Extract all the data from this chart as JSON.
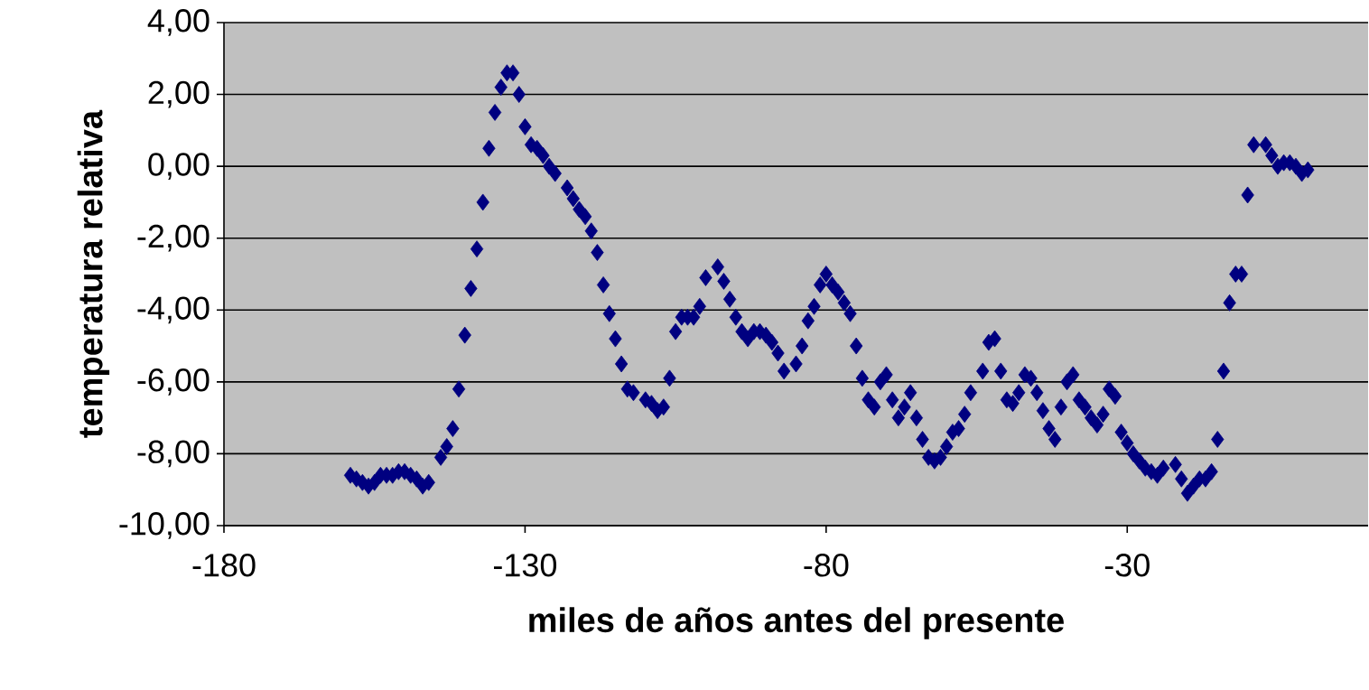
{
  "chart_data": {
    "type": "scatter",
    "xlabel": "miles de años antes del presente",
    "ylabel": "temperatura relativa",
    "x": [
      -159,
      -158,
      -157,
      -156,
      -155,
      -154,
      -153,
      -152,
      -151,
      -150,
      -149,
      -148,
      -147,
      -146,
      -144,
      -143,
      -142,
      -141,
      -140,
      -139,
      -138,
      -137,
      -136,
      -135,
      -134,
      -133,
      -132,
      -131,
      -130,
      -129,
      -128,
      -127,
      -126,
      -125,
      -123,
      -122,
      -121,
      -120,
      -119,
      -118,
      -117,
      -116,
      -115,
      -114,
      -113,
      -112,
      -110,
      -109,
      -108,
      -107,
      -106,
      -105,
      -104,
      -103,
      -102,
      -101,
      -100,
      -98,
      -97,
      -96,
      -95,
      -94,
      -93,
      -92,
      -91,
      -90,
      -89,
      -88,
      -87,
      -85,
      -84,
      -83,
      -82,
      -81,
      -80,
      -79,
      -78,
      -77,
      -76,
      -75,
      -74,
      -73,
      -72,
      -71,
      -70,
      -69,
      -68,
      -67,
      -66,
      -65,
      -64,
      -63,
      -62,
      -61,
      -60,
      -59,
      -58,
      -57,
      -56,
      -54,
      -53,
      -52,
      -51,
      -50,
      -49,
      -48,
      -47,
      -46,
      -45,
      -44,
      -43,
      -42,
      -41,
      -40,
      -39,
      -38,
      -37,
      -36,
      -35,
      -34,
      -33,
      -32,
      -31,
      -30,
      -29,
      -28,
      -27,
      -26,
      -25,
      -24,
      -22,
      -21,
      -20,
      -19,
      -18,
      -17,
      -16,
      -15,
      -14,
      -13,
      -12,
      -11,
      -10,
      -9,
      -7,
      -6,
      -5,
      -4,
      -3,
      -2,
      -1,
      0
    ],
    "values": [
      -8.6,
      -8.7,
      -8.8,
      -8.9,
      -8.8,
      -8.6,
      -8.6,
      -8.6,
      -8.5,
      -8.5,
      -8.6,
      -8.7,
      -8.9,
      -8.8,
      -8.1,
      -7.8,
      -7.3,
      -6.2,
      -4.7,
      -3.4,
      -2.3,
      -1.0,
      0.5,
      1.5,
      2.2,
      2.6,
      2.6,
      2.0,
      1.1,
      0.6,
      0.5,
      0.3,
      0.0,
      -0.2,
      -0.6,
      -0.9,
      -1.2,
      -1.4,
      -1.8,
      -2.4,
      -3.3,
      -4.1,
      -4.8,
      -5.5,
      -6.2,
      -6.3,
      -6.5,
      -6.6,
      -6.8,
      -6.7,
      -5.9,
      -4.6,
      -4.2,
      -4.2,
      -4.2,
      -3.9,
      -3.1,
      -2.8,
      -3.2,
      -3.7,
      -4.2,
      -4.6,
      -4.8,
      -4.6,
      -4.6,
      -4.7,
      -4.9,
      -5.2,
      -5.7,
      -5.5,
      -5.0,
      -4.3,
      -3.9,
      -3.3,
      -3.0,
      -3.3,
      -3.5,
      -3.8,
      -4.1,
      -5.0,
      -5.9,
      -6.5,
      -6.7,
      -6.0,
      -5.8,
      -6.5,
      -7.0,
      -6.7,
      -6.3,
      -7.0,
      -7.6,
      -8.1,
      -8.2,
      -8.1,
      -7.8,
      -7.4,
      -7.3,
      -6.9,
      -6.3,
      -5.7,
      -4.9,
      -4.8,
      -5.7,
      -6.5,
      -6.6,
      -6.3,
      -5.8,
      -5.9,
      -6.3,
      -6.8,
      -7.3,
      -7.6,
      -6.7,
      -6.0,
      -5.8,
      -6.5,
      -6.7,
      -7.0,
      -7.2,
      -6.9,
      -6.2,
      -6.4,
      -7.4,
      -7.7,
      -8.0,
      -8.2,
      -8.4,
      -8.5,
      -8.6,
      -8.4,
      -8.3,
      -8.7,
      -9.1,
      -8.9,
      -8.7,
      -8.7,
      -8.5,
      -7.6,
      -5.7,
      -3.8,
      -3.0,
      -3.0,
      -0.8,
      0.6,
      0.6,
      0.3,
      0.0,
      0.1,
      0.1,
      0.0,
      -0.2,
      -0.1
    ],
    "color": "#000080",
    "marker": "diamond",
    "grid": "y",
    "xlim": [
      -180,
      10
    ],
    "xticks": [
      -180,
      -130,
      -80,
      -30
    ],
    "ylim": [
      -10,
      4
    ],
    "yticks": [
      {
        "value": -10,
        "label": "-10,00"
      },
      {
        "value": -8,
        "label": "-8,00"
      },
      {
        "value": -6,
        "label": "-6,00"
      },
      {
        "value": -4,
        "label": "-4,00"
      },
      {
        "value": -2,
        "label": "-2,00"
      },
      {
        "value": 0,
        "label": "0,00"
      },
      {
        "value": 2,
        "label": "2,00"
      },
      {
        "value": 4,
        "label": "4,00"
      }
    ]
  }
}
